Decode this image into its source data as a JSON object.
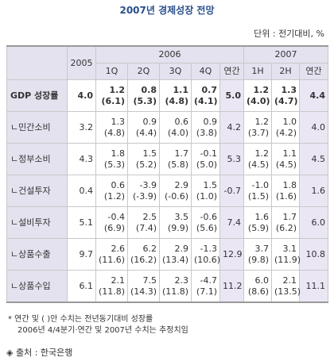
{
  "header": {
    "title": "2007년 경제성장 전망",
    "unit": "단위 : 전기대비, %"
  },
  "table": {
    "years": [
      "2005",
      "2006",
      "2007"
    ],
    "periods": [
      "1Q",
      "2Q",
      "3Q",
      "4Q",
      "연간",
      "1H",
      "2H",
      "연간"
    ],
    "rows": [
      {
        "label": "GDP 성장률",
        "cells": [
          [
            "4.0"
          ],
          [
            "1.2",
            "(6.1)"
          ],
          [
            "0.8",
            "(5.3)"
          ],
          [
            "1.1",
            "(4.8)"
          ],
          [
            "0.7",
            "(4.1)"
          ],
          [
            "5.0"
          ],
          [
            "1.2",
            "(4.0)"
          ],
          [
            "1.3",
            "(4.7)"
          ],
          [
            "4.4"
          ]
        ]
      },
      {
        "label": "ㄴ민간소비",
        "cells": [
          [
            "3.2"
          ],
          [
            "1.3",
            "(4.8)"
          ],
          [
            "0.9",
            "(4.4)"
          ],
          [
            "0.6",
            "(4.0)"
          ],
          [
            "0.9",
            "(3.8)"
          ],
          [
            "4.2"
          ],
          [
            "1.2",
            "(3.7)"
          ],
          [
            "1.0",
            "(4.2)"
          ],
          [
            "4.0"
          ]
        ]
      },
      {
        "label": "ㄴ정부소비",
        "cells": [
          [
            "4.3"
          ],
          [
            "1.8",
            "(5.3)"
          ],
          [
            "1.5",
            "(5.2)"
          ],
          [
            "1.7",
            "(5.8)"
          ],
          [
            "-0.1",
            "(5.0)"
          ],
          [
            "5.3"
          ],
          [
            "1.2",
            "(4.5)"
          ],
          [
            "1.1",
            "(4.5)"
          ],
          [
            "4.5"
          ]
        ]
      },
      {
        "label": "ㄴ건설투자",
        "cells": [
          [
            "0.4"
          ],
          [
            "0.6",
            "(1.2)"
          ],
          [
            "-3.9",
            "(-3.9)"
          ],
          [
            "2.9",
            "(-0.6)"
          ],
          [
            "1.5",
            "(1.0)"
          ],
          [
            "-0.7"
          ],
          [
            "-1.0",
            "(1.5)"
          ],
          [
            "1.8",
            "(1.6)"
          ],
          [
            "1.6"
          ]
        ]
      },
      {
        "label": "ㄴ설비투자",
        "cells": [
          [
            "5.1"
          ],
          [
            "-0.4",
            "(6.9)"
          ],
          [
            "2.5",
            "(7.4)"
          ],
          [
            "3.5",
            "(9.9)"
          ],
          [
            "-0.6",
            "(5.6)"
          ],
          [
            "7.4"
          ],
          [
            "1.6",
            "(5.9)"
          ],
          [
            "1.7",
            "(6.2)"
          ],
          [
            "6.0"
          ]
        ]
      },
      {
        "label": "ㄴ상품수출",
        "cells": [
          [
            "9.7"
          ],
          [
            "2.6",
            "(11.6)"
          ],
          [
            "6.2",
            "(16.2)"
          ],
          [
            "2.9",
            "(13.4)"
          ],
          [
            "-1.3",
            "(10.6)"
          ],
          [
            "12.9"
          ],
          [
            "3.7",
            "(9.8)"
          ],
          [
            "3.1",
            "(11.9)"
          ],
          [
            "10.8"
          ]
        ]
      },
      {
        "label": "ㄴ상품수입",
        "cells": [
          [
            "6.1"
          ],
          [
            "2.1",
            "(11.8)"
          ],
          [
            "7.5",
            "(14.3)"
          ],
          [
            "2.3",
            "(11.8)"
          ],
          [
            "-4.7",
            "(7.1)"
          ],
          [
            "11.2"
          ],
          [
            "6.0",
            "(8.6)"
          ],
          [
            "2.1",
            "(13.5)"
          ],
          [
            "11.1"
          ]
        ]
      }
    ]
  },
  "notes": [
    "* 연간 및 ( )안 수치는 전년동기대비 성장률",
    "2006년 4/4분기·연간 및 2007년 수치는 추정치임"
  ],
  "source": "출처 : 한국은행"
}
